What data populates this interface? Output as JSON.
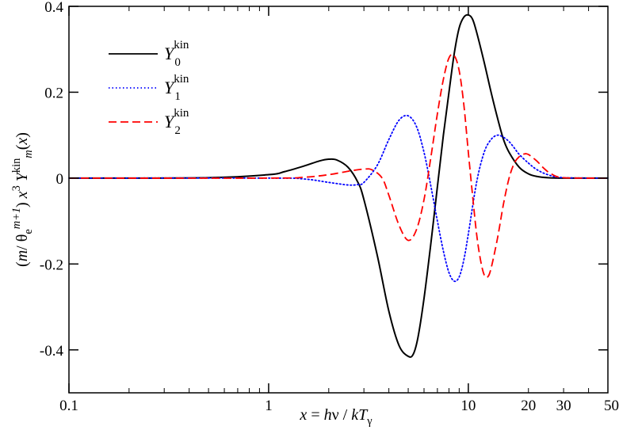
{
  "chart_data": {
    "type": "line",
    "title": "",
    "xlabel": {
      "parts": [
        {
          "t": "x",
          "style": "italic"
        },
        {
          "t": " = "
        },
        {
          "t": "h",
          "style": "italic"
        },
        {
          "t": "ν / "
        },
        {
          "t": "kT",
          "style": "italic"
        },
        {
          "t": "γ",
          "style": "sub"
        }
      ]
    },
    "ylabel": {
      "parts": [
        {
          "t": "("
        },
        {
          "t": "m",
          "style": "italic"
        },
        {
          "t": "/ θ"
        },
        {
          "t": "e",
          "style": "sub"
        },
        {
          "t": "m+1",
          "style": "sup-italic"
        },
        {
          "t": ")  "
        },
        {
          "t": "x",
          "style": "italic"
        },
        {
          "t": "3",
          "style": "sup"
        },
        {
          "t": "  "
        },
        {
          "t": "Y",
          "style": "italic"
        },
        {
          "t": "kin",
          "style": "sup"
        },
        {
          "t": "m",
          "style": "sub-italic"
        },
        {
          "t": "("
        },
        {
          "t": "x",
          "style": "italic"
        },
        {
          "t": ")"
        }
      ]
    },
    "x_scale": "log",
    "xlim": [
      0.1,
      50
    ],
    "ylim": [
      -0.5,
      0.4
    ],
    "x_ticks": [
      0.1,
      1,
      10,
      20,
      30,
      50
    ],
    "x_tick_labels": [
      "0.1",
      "1",
      "10",
      "20",
      "30",
      "50"
    ],
    "y_ticks": [
      -0.4,
      -0.2,
      0,
      0.2,
      0.4
    ],
    "y_tick_labels": [
      "-0.4",
      "-0.2",
      "0",
      "0.2",
      "0.4"
    ],
    "grid": false,
    "legend_position": "top-left",
    "series": [
      {
        "name": "Y^kin_0",
        "legend_base": "Y",
        "legend_sup": "kin",
        "legend_sub": "0",
        "color": "#000000",
        "dash": "solid",
        "x": [
          0.1,
          0.5,
          1.0,
          1.2,
          1.5,
          1.8,
          2.0,
          2.2,
          2.5,
          2.8,
          3.0,
          3.5,
          4.0,
          4.5,
          5.0,
          5.3,
          5.6,
          6.0,
          6.5,
          7.0,
          7.5,
          8.0,
          8.5,
          9.0,
          9.5,
          10.0,
          10.5,
          11.0,
          12.0,
          13.0,
          14.0,
          15.0,
          16.0,
          18.0,
          20.0,
          22.0,
          25.0,
          30.0,
          50.0
        ],
        "y": [
          0.0,
          0.001,
          0.008,
          0.015,
          0.028,
          0.04,
          0.044,
          0.042,
          0.025,
          -0.01,
          -0.05,
          -0.18,
          -0.31,
          -0.39,
          -0.415,
          -0.41,
          -0.37,
          -0.28,
          -0.15,
          -0.02,
          0.1,
          0.2,
          0.29,
          0.35,
          0.375,
          0.38,
          0.37,
          0.34,
          0.27,
          0.2,
          0.14,
          0.09,
          0.06,
          0.025,
          0.01,
          0.004,
          0.001,
          0.0,
          0.0
        ]
      },
      {
        "name": "Y^kin_1",
        "legend_base": "Y",
        "legend_sup": "kin",
        "legend_sub": "1",
        "color": "#0000ff",
        "dash": "dotted",
        "x": [
          0.1,
          1.0,
          1.5,
          2.0,
          2.5,
          2.8,
          3.0,
          3.5,
          4.0,
          4.5,
          5.0,
          5.5,
          6.0,
          6.5,
          7.0,
          7.5,
          8.0,
          8.5,
          9.0,
          9.5,
          10.0,
          11.0,
          12.0,
          13.0,
          14.0,
          15.0,
          16.0,
          17.0,
          18.0,
          20.0,
          22.0,
          25.0,
          30.0,
          50.0
        ],
        "y": [
          0.0,
          0.0,
          -0.002,
          -0.01,
          -0.016,
          -0.015,
          -0.01,
          0.03,
          0.09,
          0.135,
          0.145,
          0.12,
          0.06,
          -0.02,
          -0.1,
          -0.17,
          -0.22,
          -0.24,
          -0.23,
          -0.19,
          -0.13,
          -0.01,
          0.06,
          0.09,
          0.1,
          0.095,
          0.085,
          0.07,
          0.055,
          0.035,
          0.02,
          0.008,
          0.001,
          0.0
        ]
      },
      {
        "name": "Y^kin_2",
        "legend_base": "Y",
        "legend_sup": "kin",
        "legend_sub": "2",
        "color": "#ff0000",
        "dash": "dashed",
        "x": [
          0.1,
          1.0,
          1.5,
          2.0,
          2.5,
          3.0,
          3.3,
          3.7,
          4.0,
          4.5,
          5.0,
          5.5,
          6.0,
          6.5,
          7.0,
          7.5,
          8.0,
          8.5,
          9.0,
          9.5,
          10.0,
          10.5,
          11.0,
          11.5,
          12.0,
          12.5,
          13.0,
          14.0,
          15.0,
          16.0,
          17.0,
          18.0,
          19.0,
          20.0,
          22.0,
          24.0,
          26.0,
          30.0,
          50.0
        ],
        "y": [
          0.0,
          0.0,
          0.002,
          0.008,
          0.016,
          0.021,
          0.019,
          0.0,
          -0.04,
          -0.11,
          -0.145,
          -0.12,
          -0.05,
          0.05,
          0.15,
          0.23,
          0.28,
          0.285,
          0.25,
          0.17,
          0.06,
          -0.04,
          -0.13,
          -0.19,
          -0.225,
          -0.23,
          -0.21,
          -0.14,
          -0.06,
          0.0,
          0.035,
          0.05,
          0.056,
          0.055,
          0.04,
          0.022,
          0.01,
          0.001,
          0.0
        ]
      }
    ]
  }
}
